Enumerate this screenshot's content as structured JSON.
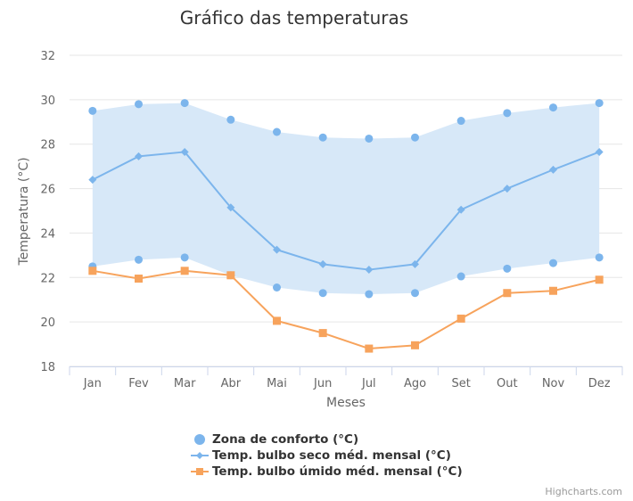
{
  "chart_data": {
    "type": "line",
    "title": "Gráfico das temperaturas",
    "xlabel": "Meses",
    "ylabel": "Temperatura (°C)",
    "ylim": [
      18,
      32
    ],
    "yticks": [
      18,
      20,
      22,
      24,
      26,
      28,
      30,
      32
    ],
    "categories": [
      "Jan",
      "Fev",
      "Mar",
      "Abr",
      "Mai",
      "Jun",
      "Jul",
      "Ago",
      "Set",
      "Out",
      "Nov",
      "Dez"
    ],
    "grid": true,
    "legend_position": "bottom",
    "series": [
      {
        "name": "Zona de conforto (°C)",
        "kind": "arearange",
        "color": "#7cb5ec",
        "fill": "#d7e8f8",
        "low": [
          22.5,
          22.8,
          22.9,
          22.1,
          21.55,
          21.3,
          21.25,
          21.3,
          22.05,
          22.4,
          22.65,
          22.9
        ],
        "high": [
          29.5,
          29.8,
          29.85,
          29.1,
          28.55,
          28.3,
          28.25,
          28.3,
          29.05,
          29.4,
          29.65,
          29.85
        ]
      },
      {
        "name": "Temp. bulbo seco méd. mensal (°C)",
        "kind": "line",
        "marker": "diamond",
        "color": "#7cb5ec",
        "values": [
          26.4,
          27.45,
          27.65,
          25.15,
          23.25,
          22.6,
          22.35,
          22.6,
          25.05,
          26.0,
          26.85,
          27.65
        ]
      },
      {
        "name": "Temp. bulbo úmido méd. mensal (°C)",
        "kind": "line",
        "marker": "square",
        "color": "#f7a35c",
        "values": [
          22.3,
          21.95,
          22.3,
          22.1,
          20.05,
          19.5,
          18.8,
          18.95,
          20.15,
          21.3,
          21.4,
          21.9
        ]
      }
    ]
  },
  "credit": "Highcharts.com"
}
